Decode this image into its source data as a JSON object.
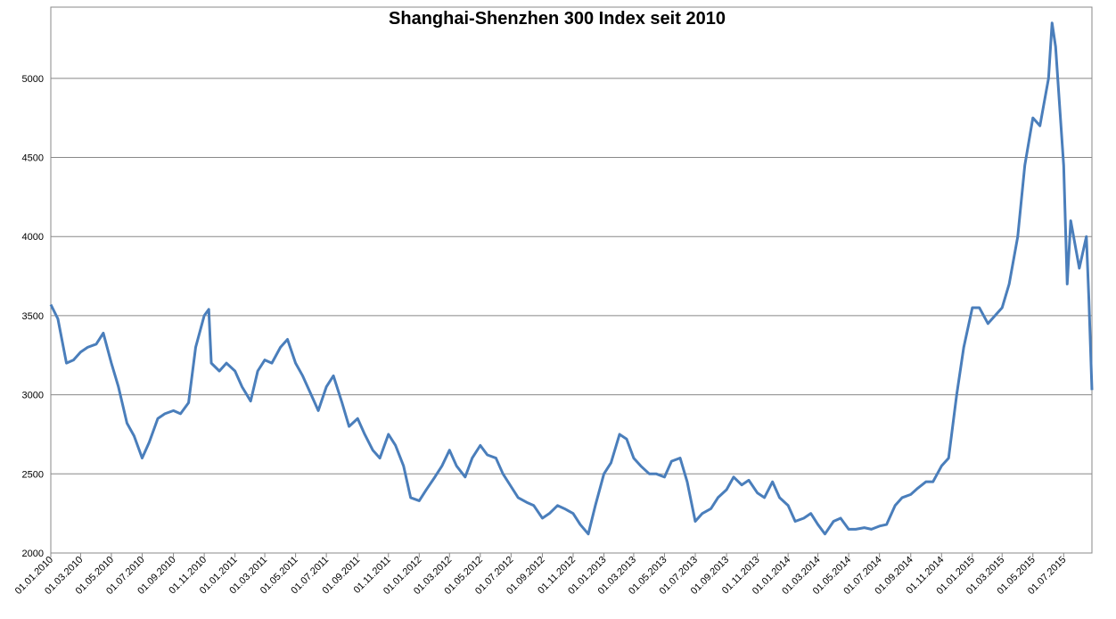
{
  "chart_data": {
    "type": "line",
    "title": "Shanghai-Shenzhen 300 Index seit 2010",
    "x": [
      "01.01.2010",
      "15.01.2010",
      "01.02.2010",
      "15.02.2010",
      "01.03.2010",
      "15.03.2010",
      "01.04.2010",
      "15.04.2010",
      "01.05.2010",
      "15.05.2010",
      "01.06.2010",
      "15.06.2010",
      "01.07.2010",
      "15.07.2010",
      "01.08.2010",
      "15.08.2010",
      "01.09.2010",
      "15.09.2010",
      "01.10.2010",
      "15.10.2010",
      "01.11.2010",
      "10.11.2010",
      "15.11.2010",
      "01.12.2010",
      "15.12.2010",
      "01.01.2011",
      "15.01.2011",
      "01.02.2011",
      "15.02.2011",
      "01.03.2011",
      "15.03.2011",
      "01.04.2011",
      "15.04.2011",
      "01.05.2011",
      "15.05.2011",
      "01.06.2011",
      "15.06.2011",
      "01.07.2011",
      "15.07.2011",
      "01.08.2011",
      "15.08.2011",
      "01.09.2011",
      "15.09.2011",
      "01.10.2011",
      "15.10.2011",
      "01.11.2011",
      "15.11.2011",
      "01.12.2011",
      "15.12.2011",
      "01.01.2012",
      "15.01.2012",
      "01.02.2012",
      "15.02.2012",
      "01.03.2012",
      "15.03.2012",
      "01.04.2012",
      "15.04.2012",
      "01.05.2012",
      "15.05.2012",
      "01.06.2012",
      "15.06.2012",
      "01.07.2012",
      "15.07.2012",
      "01.08.2012",
      "15.08.2012",
      "01.09.2012",
      "15.09.2012",
      "01.10.2012",
      "15.10.2012",
      "01.11.2012",
      "15.11.2012",
      "01.12.2012",
      "15.12.2012",
      "01.01.2013",
      "15.01.2013",
      "01.02.2013",
      "15.02.2013",
      "01.03.2013",
      "15.03.2013",
      "01.04.2013",
      "15.04.2013",
      "01.05.2013",
      "15.05.2013",
      "01.06.2013",
      "15.06.2013",
      "01.07.2013",
      "15.07.2013",
      "01.08.2013",
      "15.08.2013",
      "01.09.2013",
      "15.09.2013",
      "01.10.2013",
      "15.10.2013",
      "01.11.2013",
      "15.11.2013",
      "01.12.2013",
      "15.12.2013",
      "01.01.2014",
      "15.01.2014",
      "01.02.2014",
      "15.02.2014",
      "01.03.2014",
      "15.03.2014",
      "01.04.2014",
      "15.04.2014",
      "01.05.2014",
      "15.05.2014",
      "01.06.2014",
      "15.06.2014",
      "01.07.2014",
      "15.07.2014",
      "01.08.2014",
      "15.08.2014",
      "01.09.2014",
      "15.09.2014",
      "01.10.2014",
      "15.10.2014",
      "01.11.2014",
      "15.11.2014",
      "01.12.2014",
      "15.12.2014",
      "01.01.2015",
      "15.01.2015",
      "01.02.2015",
      "15.02.2015",
      "01.03.2015",
      "15.03.2015",
      "01.04.2015",
      "15.04.2015",
      "01.05.2015",
      "15.05.2015",
      "01.06.2015",
      "08.06.2015",
      "15.06.2015",
      "01.07.2015",
      "08.07.2015",
      "15.07.2015",
      "01.08.2015",
      "15.08.2015",
      "20.08.2015",
      "26.08.2015"
    ],
    "series": [
      {
        "color": "#4a7ebb",
        "values": [
          3570,
          3480,
          3200,
          3220,
          3270,
          3300,
          3320,
          3390,
          3200,
          3050,
          2820,
          2740,
          2600,
          2700,
          2850,
          2880,
          2900,
          2880,
          2950,
          3300,
          3500,
          3540,
          3200,
          3150,
          3200,
          3150,
          3050,
          2960,
          3150,
          3220,
          3200,
          3300,
          3350,
          3200,
          3120,
          3000,
          2900,
          3050,
          3120,
          2950,
          2800,
          2850,
          2750,
          2650,
          2600,
          2750,
          2680,
          2550,
          2350,
          2330,
          2400,
          2480,
          2550,
          2650,
          2550,
          2480,
          2600,
          2680,
          2620,
          2600,
          2500,
          2420,
          2350,
          2320,
          2300,
          2220,
          2250,
          2300,
          2280,
          2250,
          2180,
          2120,
          2300,
          2500,
          2570,
          2750,
          2720,
          2600,
          2550,
          2500,
          2500,
          2480,
          2580,
          2600,
          2450,
          2200,
          2250,
          2280,
          2350,
          2400,
          2480,
          2430,
          2460,
          2380,
          2350,
          2450,
          2350,
          2300,
          2200,
          2220,
          2250,
          2180,
          2120,
          2200,
          2220,
          2150,
          2150,
          2160,
          2150,
          2170,
          2180,
          2300,
          2350,
          2370,
          2410,
          2450,
          2450,
          2550,
          2600,
          3000,
          3300,
          3550,
          3550,
          3450,
          3500,
          3550,
          3700,
          4000,
          4450,
          4750,
          4700,
          5000,
          5350,
          5200,
          4450,
          3700,
          4100,
          3800,
          4000,
          3600,
          3030
        ]
      }
    ],
    "xlim": [
      "01.01.2010",
      "26.08.2015"
    ],
    "xticks": [
      "01.01.2010",
      "01.03.2010",
      "01.05.2010",
      "01.07.2010",
      "01.09.2010",
      "01.11.2010",
      "01.01.2011",
      "01.03.2011",
      "01.05.2011",
      "01.07.2011",
      "01.09.2011",
      "01.11.2011",
      "01.01.2012",
      "01.03.2012",
      "01.05.2012",
      "01.07.2012",
      "01.09.2012",
      "01.11.2012",
      "01.01.2013",
      "01.03.2013",
      "01.05.2013",
      "01.07.2013",
      "01.09.2013",
      "01.11.2013",
      "01.01.2014",
      "01.03.2014",
      "01.05.2014",
      "01.07.2014",
      "01.09.2014",
      "01.11.2014",
      "01.01.2015",
      "01.03.2015",
      "01.05.2015",
      "01.07.2015"
    ],
    "ylim": [
      2000,
      5450
    ],
    "yticks": [
      2000,
      2500,
      3000,
      3500,
      4000,
      4500,
      5000
    ],
    "grid": true
  }
}
